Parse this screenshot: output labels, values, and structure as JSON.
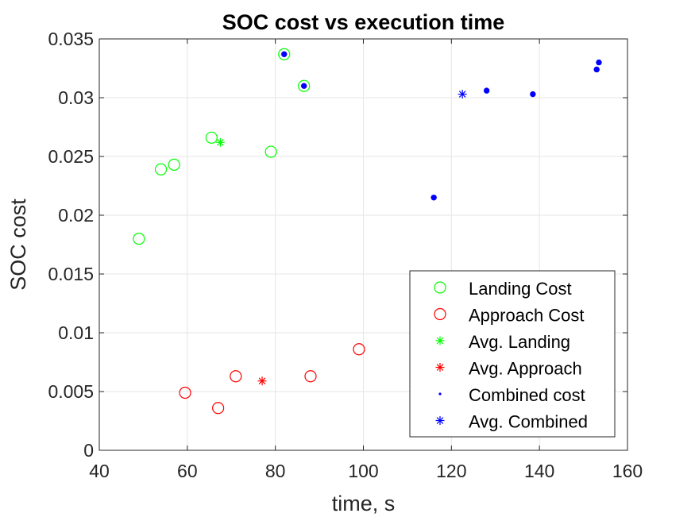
{
  "chart_data": {
    "type": "scatter",
    "title": "SOC cost vs execution time",
    "xlabel": "time, s",
    "ylabel": "SOC cost",
    "xlim": [
      40,
      160
    ],
    "ylim": [
      0,
      0.035
    ],
    "xticks": [
      "40",
      "60",
      "80",
      "100",
      "120",
      "140",
      "160"
    ],
    "yticks": [
      "0",
      "0.005",
      "0.01",
      "0.015",
      "0.02",
      "0.025",
      "0.03",
      "0.035"
    ],
    "grid": true,
    "legend_position": "bottom-right",
    "series": [
      {
        "name": "Landing Cost",
        "marker": "circle-open",
        "color": "#00ff00",
        "points": [
          [
            49,
            0.018
          ],
          [
            54,
            0.0239
          ],
          [
            57,
            0.0243
          ],
          [
            65.5,
            0.0266
          ],
          [
            79,
            0.0254
          ],
          [
            82,
            0.0337
          ],
          [
            86.5,
            0.031
          ]
        ]
      },
      {
        "name": "Approach Cost",
        "marker": "circle-open",
        "color": "#ff0000",
        "points": [
          [
            59.5,
            0.0049
          ],
          [
            67,
            0.0036
          ],
          [
            71,
            0.0063
          ],
          [
            88,
            0.0063
          ],
          [
            99,
            0.0086
          ]
        ]
      },
      {
        "name": "Avg. Landing",
        "marker": "asterisk",
        "color": "#00ff00",
        "points": [
          [
            67.5,
            0.0262
          ]
        ]
      },
      {
        "name": "Avg. Approach",
        "marker": "asterisk",
        "color": "#ff0000",
        "points": [
          [
            77,
            0.0059
          ]
        ]
      },
      {
        "name": "Combined cost",
        "marker": "dot",
        "color": "#0000ff",
        "points": [
          [
            82,
            0.0337
          ],
          [
            86.5,
            0.031
          ],
          [
            116,
            0.0215
          ],
          [
            128,
            0.0306
          ],
          [
            138.5,
            0.0303
          ],
          [
            153,
            0.0324
          ],
          [
            153.5,
            0.033
          ]
        ]
      },
      {
        "name": "Avg. Combined",
        "marker": "asterisk",
        "color": "#0000ff",
        "points": [
          [
            122.5,
            0.0303
          ]
        ]
      }
    ]
  }
}
